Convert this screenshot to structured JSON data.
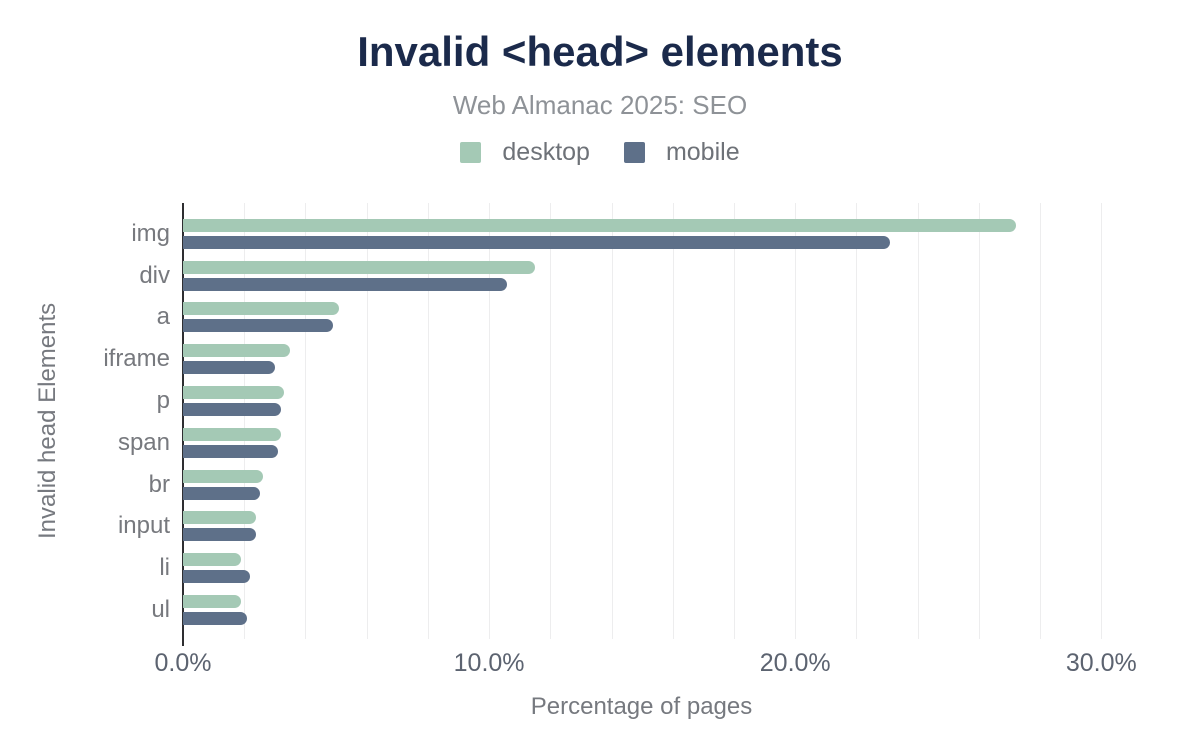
{
  "title": "Invalid <head> elements",
  "subtitle": "Web Almanac 2025: SEO",
  "colors": {
    "title": "#1b2a4b",
    "subtitle": "#8e9297",
    "desktop": "#a4c9b5",
    "mobile": "#5e7089",
    "gridline": "#ededee",
    "axis_line": "#2e2e31",
    "tick_label": "#5c6370",
    "category_label": "#77797e",
    "axis_title": "#76797f"
  },
  "chart_data": {
    "type": "bar",
    "orientation": "horizontal",
    "title": "Invalid <head> elements",
    "subtitle": "Web Almanac 2025: SEO",
    "categories": [
      "img",
      "div",
      "a",
      "iframe",
      "p",
      "span",
      "br",
      "input",
      "li",
      "ul"
    ],
    "series": [
      {
        "name": "desktop",
        "color": "#a4c9b5",
        "values": [
          27.2,
          11.5,
          5.1,
          3.5,
          3.3,
          3.2,
          2.6,
          2.4,
          1.9,
          1.9
        ]
      },
      {
        "name": "mobile",
        "color": "#5e7089",
        "values": [
          23.1,
          10.6,
          4.9,
          3.0,
          3.2,
          3.1,
          2.5,
          2.4,
          2.2,
          2.1
        ]
      }
    ],
    "xlabel": "Percentage of pages",
    "ylabel": "Invalid head Elements",
    "xlim": [
      0,
      31.1
    ],
    "xticks": [
      {
        "value": 0,
        "label": "0.0%"
      },
      {
        "value": 10,
        "label": "10.0%"
      },
      {
        "value": 20,
        "label": "20.0%"
      },
      {
        "value": 30,
        "label": "30.0%"
      }
    ],
    "gridline_step": 2,
    "gridline_max": 30,
    "grid": true,
    "legend_position": "top"
  }
}
